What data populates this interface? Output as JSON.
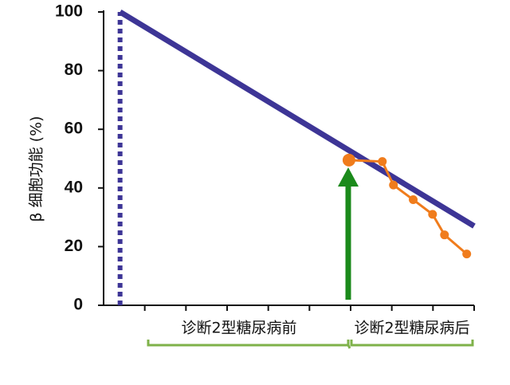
{
  "chart_data": {
    "type": "line",
    "y_label": "β 细胞功能 (%)",
    "annotations": [
      "诊断2型糖尿病前",
      "诊断2型糖尿病后"
    ],
    "ylim": [
      0,
      100
    ],
    "yticks": [
      0,
      20,
      40,
      60,
      80,
      100
    ],
    "xlim": [
      0,
      9
    ],
    "xticks": [
      1,
      2,
      3,
      4,
      5,
      6,
      7,
      8,
      9
    ],
    "series": [
      {
        "color": "#3d3596",
        "x": [
          0.4,
          9
        ],
        "values": [
          100,
          27
        ],
        "width": 7
      },
      {
        "color": "#3d3596",
        "x": [
          0.4,
          0.4
        ],
        "values": [
          0,
          100
        ],
        "width": 6,
        "dash": true
      },
      {
        "color": "#f07c1c",
        "x": [
          5.96,
          6.77,
          7.04,
          7.52,
          7.99,
          8.28,
          8.82
        ],
        "values": [
          49.5,
          49,
          41,
          36,
          31,
          24,
          17.5
        ],
        "width": 3,
        "markers": true
      }
    ]
  }
}
